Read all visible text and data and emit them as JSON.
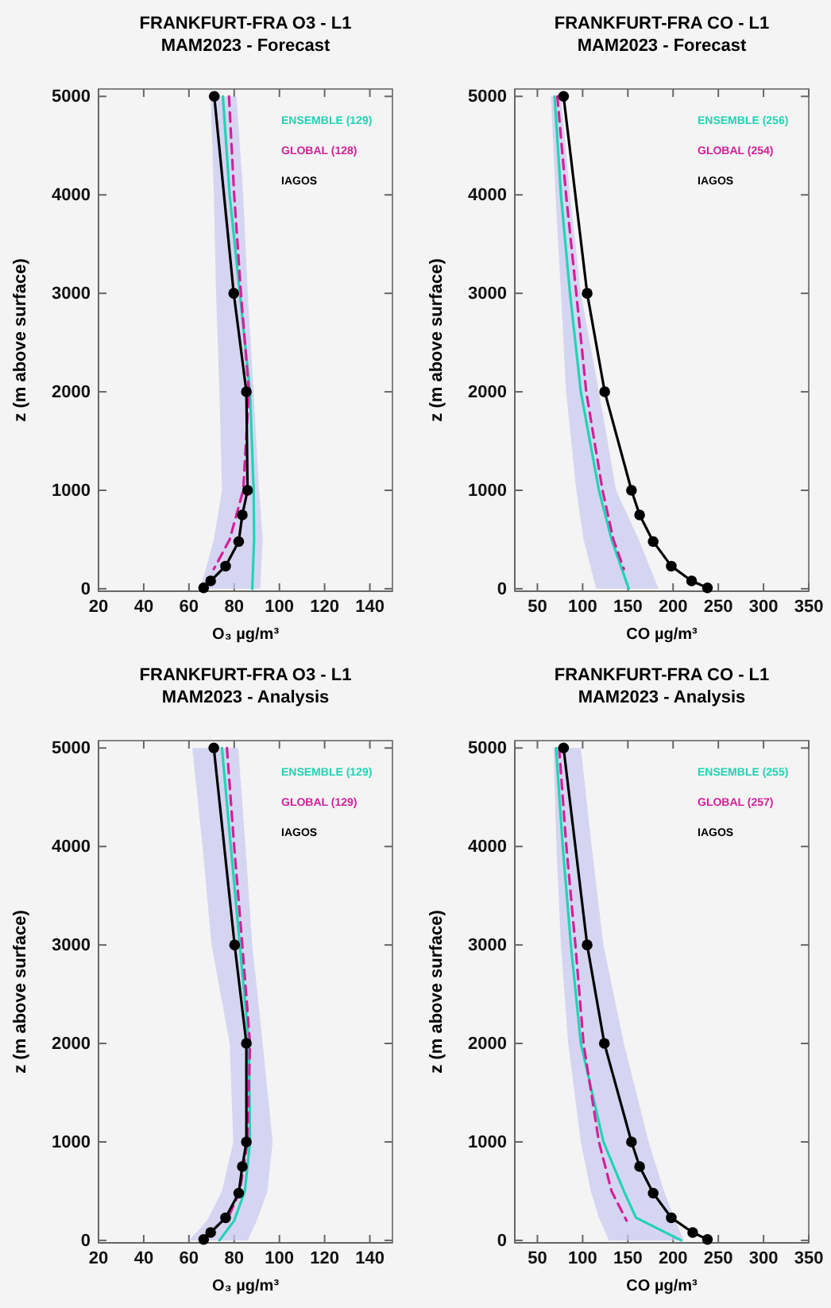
{
  "chart_data": [
    {
      "type": "line",
      "orientation": "horizontal",
      "title": "FRANKFURT-FRA O3 - L1",
      "subtitle": "MAM2023 - Forecast",
      "xlabel": "O₃ µg/m³",
      "ylabel": "z (m above surface)",
      "xlim": [
        20,
        150
      ],
      "xticks": [
        20,
        40,
        60,
        80,
        100,
        120,
        140
      ],
      "ylim": [
        -25,
        5075
      ],
      "yticks": [
        0,
        1000,
        2000,
        3000,
        4000,
        5000
      ],
      "legend": "top right",
      "series": [
        {
          "name": "ENSEMBLE (129)",
          "color": "#22d3b4",
          "x": [
            5000,
            4000,
            3000,
            2000,
            1000,
            500,
            0
          ],
          "values": [
            75,
            78,
            82.5,
            87,
            88.6,
            88.8,
            88
          ],
          "lower": [
            69.6,
            71,
            72,
            73.5,
            74.6,
            71,
            65
          ],
          "upper": [
            81,
            84,
            86,
            88.6,
            91,
            92.6,
            91.5
          ]
        },
        {
          "name": "GLOBAL (128)",
          "color": "#d4209a",
          "line_style": "dashed",
          "x": [
            5000,
            4000,
            3000,
            2000,
            1000,
            500,
            200
          ],
          "values": [
            77.7,
            80,
            83,
            86.5,
            84,
            78,
            71
          ]
        },
        {
          "name": "IAGOS",
          "color": "#000000",
          "marker": "circle",
          "x": [
            5000,
            3000,
            2000,
            1000,
            750,
            480,
            230,
            80,
            10
          ],
          "values": [
            71.2,
            79.8,
            85.4,
            85.9,
            83.6,
            82,
            76.2,
            69.6,
            66.5
          ]
        }
      ]
    },
    {
      "type": "line",
      "orientation": "horizontal",
      "title": "FRANKFURT-FRA CO - L1",
      "subtitle": "MAM2023 - Forecast",
      "xlabel": "CO µg/m³",
      "ylabel": "z (m above surface)",
      "xlim": [
        25,
        350
      ],
      "xticks": [
        50,
        100,
        150,
        200,
        250,
        300,
        350
      ],
      "ylim": [
        -25,
        5075
      ],
      "yticks": [
        0,
        1000,
        2000,
        3000,
        4000,
        5000
      ],
      "legend": "top right",
      "series": [
        {
          "name": "ENSEMBLE (256)",
          "color": "#22d3b4",
          "x": [
            5000,
            4000,
            3000,
            2000,
            1000,
            500,
            0
          ],
          "values": [
            69,
            76,
            86,
            98,
            118,
            132,
            151
          ],
          "lower": [
            65,
            70,
            76,
            81.7,
            93,
            101,
            115
          ],
          "upper": [
            76,
            86,
            98,
            118,
            137,
            162,
            184
          ]
        },
        {
          "name": "GLOBAL (254)",
          "color": "#d4209a",
          "line_style": "dashed",
          "x": [
            5000,
            4000,
            3000,
            2000,
            1000,
            500,
            200
          ],
          "values": [
            72,
            81.7,
            93,
            104,
            122,
            134,
            145.6
          ]
        },
        {
          "name": "IAGOS",
          "color": "#000000",
          "marker": "circle",
          "x": [
            5000,
            3000,
            2000,
            1000,
            750,
            480,
            230,
            80,
            10
          ],
          "values": [
            78.9,
            105,
            124.4,
            154,
            163,
            178,
            198,
            220.5,
            238
          ]
        }
      ]
    },
    {
      "type": "line",
      "orientation": "horizontal",
      "title": "FRANKFURT-FRA O3 - L1",
      "subtitle": "MAM2023 - Analysis",
      "xlabel": "O₃ µg/m³",
      "ylabel": "z (m above surface)",
      "xlim": [
        20,
        150
      ],
      "xticks": [
        20,
        40,
        60,
        80,
        100,
        120,
        140
      ],
      "ylim": [
        -25,
        5075
      ],
      "yticks": [
        0,
        1000,
        2000,
        3000,
        4000,
        5000
      ],
      "legend": "top right",
      "series": [
        {
          "name": "ENSEMBLE (129)",
          "color": "#22d3b4",
          "x": [
            5000,
            4000,
            3000,
            2000,
            1000,
            500,
            200,
            0
          ],
          "values": [
            74.6,
            78.5,
            82.5,
            86.5,
            87,
            84.7,
            80,
            73.5
          ],
          "lower": [
            61.5,
            66,
            70,
            78,
            79.6,
            74.6,
            68,
            60
          ],
          "upper": [
            81.8,
            85,
            88,
            92.6,
            97,
            94.7,
            90,
            86
          ]
        },
        {
          "name": "GLOBAL (129)",
          "color": "#d4209a",
          "line_style": "dashed",
          "x": [
            5000,
            4000,
            3000,
            2000,
            1000,
            500,
            200
          ],
          "values": [
            76.8,
            80,
            83.6,
            87,
            85.9,
            82.5,
            76.8
          ]
        },
        {
          "name": "IAGOS",
          "color": "#000000",
          "marker": "circle",
          "x": [
            5000,
            3000,
            2000,
            1000,
            750,
            480,
            230,
            80,
            10
          ],
          "values": [
            71,
            80.2,
            85.4,
            85.4,
            83.6,
            82,
            76.2,
            69.6,
            66.5
          ]
        }
      ]
    },
    {
      "type": "line",
      "orientation": "horizontal",
      "title": "FRANKFURT-FRA CO - L1",
      "subtitle": "MAM2023 - Analysis",
      "xlabel": "CO µg/m³",
      "ylabel": "z (m above surface)",
      "xlim": [
        25,
        350
      ],
      "xticks": [
        50,
        100,
        150,
        200,
        250,
        300,
        350
      ],
      "ylim": [
        -25,
        5075
      ],
      "yticks": [
        0,
        1000,
        2000,
        3000,
        4000,
        5000
      ],
      "legend": "top right",
      "series": [
        {
          "name": "ENSEMBLE (255)",
          "color": "#22d3b4",
          "x": [
            5000,
            4000,
            3000,
            2000,
            1000,
            500,
            230,
            0
          ],
          "values": [
            70.6,
            78,
            87,
            98,
            123,
            145.6,
            159,
            209
          ],
          "lower": [
            67.8,
            71,
            76,
            84,
            98,
            109,
            118,
            129
          ],
          "upper": [
            98,
            110,
            123,
            145.6,
            173,
            190,
            201,
            212
          ]
        },
        {
          "name": "GLOBAL (257)",
          "color": "#d4209a",
          "line_style": "dashed",
          "x": [
            5000,
            4000,
            3000,
            2000,
            1000,
            500,
            200
          ],
          "values": [
            74,
            82,
            92,
            101,
            118,
            132,
            148.6
          ]
        },
        {
          "name": "IAGOS",
          "color": "#000000",
          "marker": "circle",
          "x": [
            5000,
            3000,
            2000,
            1000,
            750,
            480,
            230,
            80,
            10
          ],
          "values": [
            78.9,
            105,
            124,
            154,
            163,
            178,
            198,
            221.7,
            238
          ]
        }
      ]
    }
  ]
}
